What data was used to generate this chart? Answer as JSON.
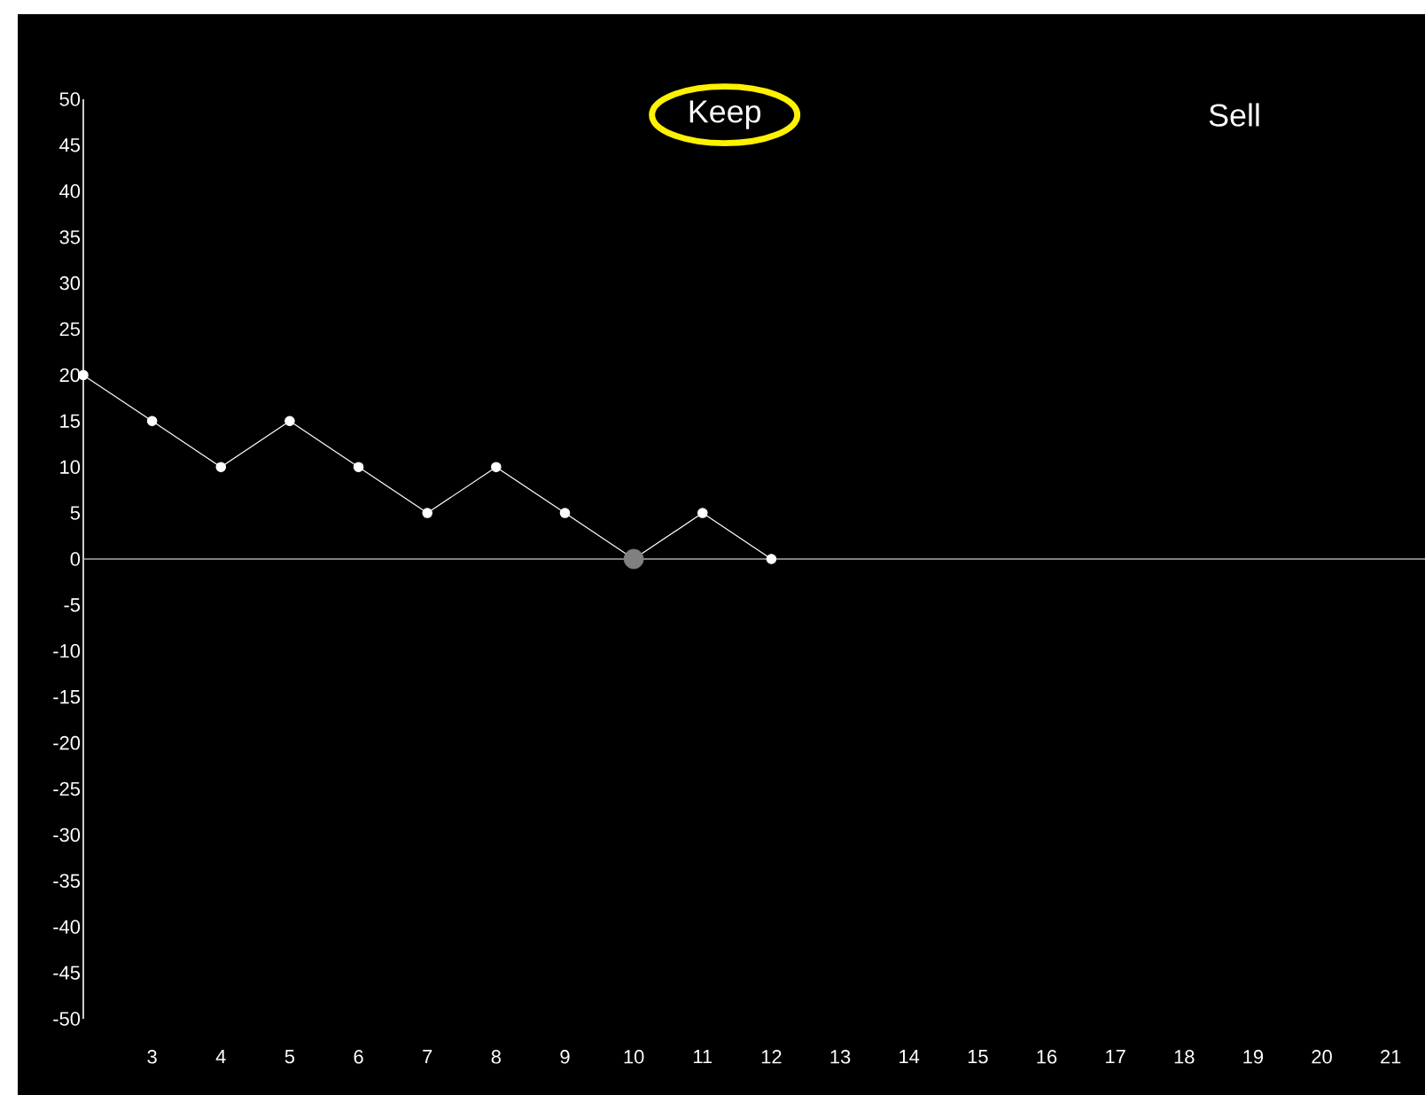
{
  "chart_data": {
    "type": "line",
    "series": [
      {
        "color": "#ffffff",
        "x": [
          2,
          3,
          4,
          5,
          6,
          7,
          8,
          9,
          10,
          11,
          12
        ],
        "values": [
          20,
          15,
          10,
          15,
          10,
          5,
          10,
          5,
          0,
          5,
          0
        ]
      },
      {
        "type": "scatter",
        "color": "#808080",
        "x": [
          10
        ],
        "values": [
          0
        ]
      }
    ],
    "xlim": [
      2,
      21.5
    ],
    "xticks": [
      3,
      4,
      5,
      6,
      7,
      8,
      9,
      10,
      11,
      12,
      13,
      14,
      15,
      16,
      17,
      18,
      19,
      20,
      21
    ],
    "ylim": [
      -50,
      50
    ],
    "yticks": [
      -50,
      -45,
      -40,
      -35,
      -30,
      -25,
      -20,
      -15,
      -10,
      -5,
      0,
      5,
      10,
      15,
      20,
      25,
      30,
      35,
      40,
      45,
      50
    ],
    "ref_lines": [
      {
        "axis": "y",
        "value": 0,
        "color": "#aaaaaa"
      }
    ],
    "annotations": [
      "Keep",
      "Sell"
    ],
    "marker": "circle",
    "grid": false
  }
}
